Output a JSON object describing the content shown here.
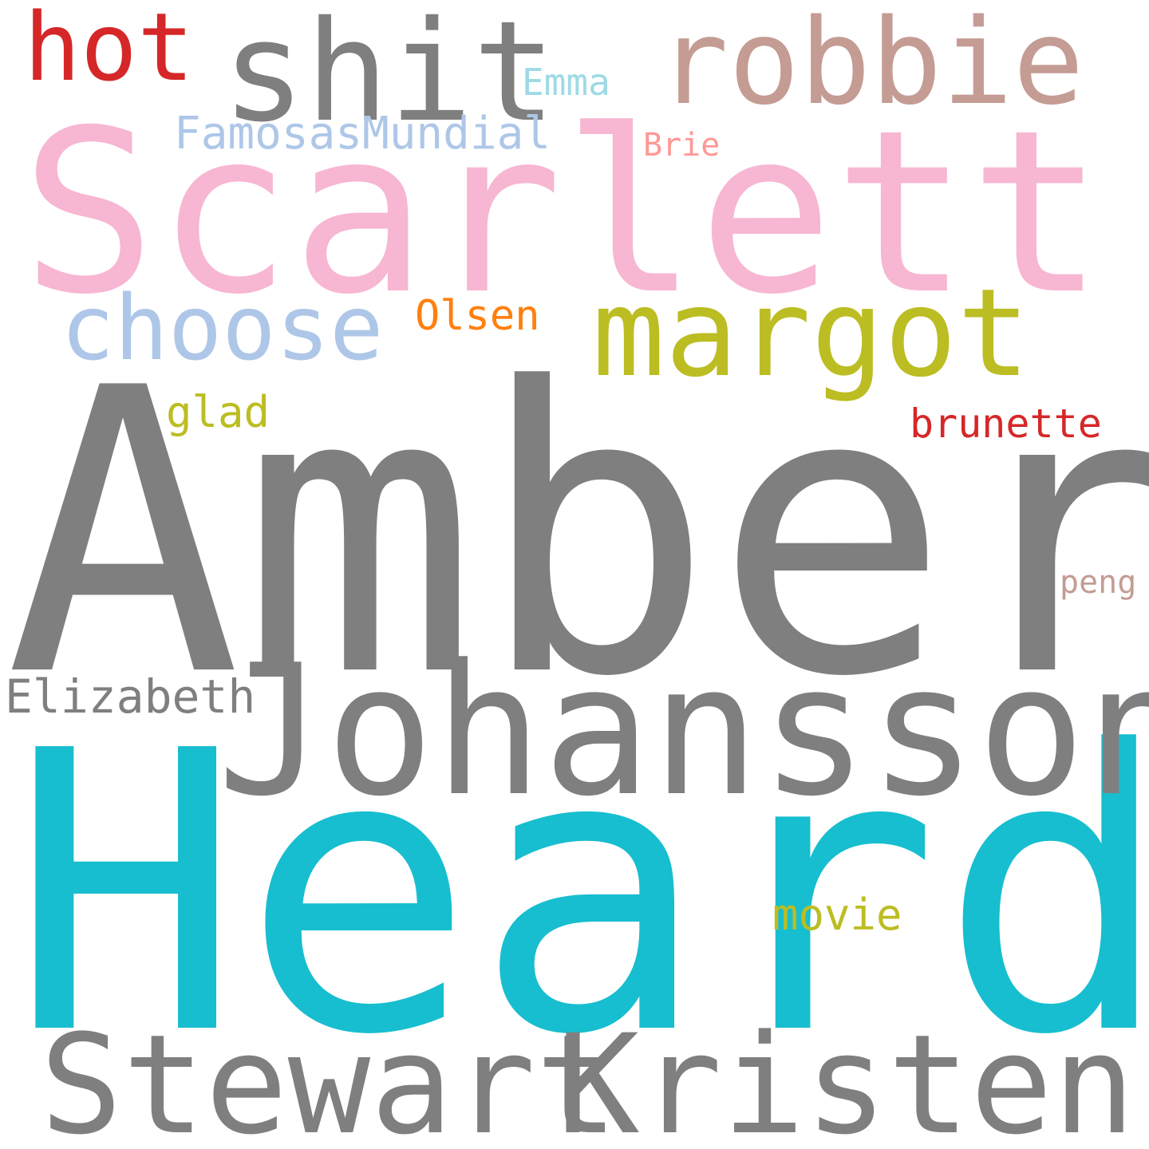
{
  "background_color": "#ffffff",
  "words": [
    {
      "id": "amber",
      "text": "Amber",
      "color": "#7f7f7f"
    },
    {
      "id": "heard",
      "text": "Heard",
      "color": "#17becf"
    },
    {
      "id": "scarlett",
      "text": "Scarlett",
      "color": "#f7b6d2"
    },
    {
      "id": "johansson",
      "text": "Johansson",
      "color": "#7f7f7f"
    },
    {
      "id": "stewart",
      "text": "Stewart",
      "color": "#7f7f7f"
    },
    {
      "id": "kristen",
      "text": "Kristen",
      "color": "#7f7f7f"
    },
    {
      "id": "shit",
      "text": "shit",
      "color": "#7f7f7f"
    },
    {
      "id": "robbie",
      "text": "robbie",
      "color": "#c49c94"
    },
    {
      "id": "margot",
      "text": "margot",
      "color": "#bcbd22"
    },
    {
      "id": "hot",
      "text": "hot",
      "color": "#d62728"
    },
    {
      "id": "choose",
      "text": "choose",
      "color": "#aec7e8"
    },
    {
      "id": "emma",
      "text": "Emma",
      "color": "#9edae5"
    },
    {
      "id": "famosas",
      "text": "FamosasMundial",
      "color": "#aec7e8"
    },
    {
      "id": "brie",
      "text": "Brie",
      "color": "#ff9896"
    },
    {
      "id": "olsen",
      "text": "Olsen",
      "color": "#ff7f0e"
    },
    {
      "id": "glad",
      "text": "glad",
      "color": "#bcbd22"
    },
    {
      "id": "brunette",
      "text": "brunette",
      "color": "#d62728"
    },
    {
      "id": "peng",
      "text": "peng",
      "color": "#c49c94"
    },
    {
      "id": "elizabeth",
      "text": "Elizabeth",
      "color": "#7f7f7f"
    },
    {
      "id": "movie",
      "text": "movie",
      "color": "#bcbd22"
    }
  ]
}
